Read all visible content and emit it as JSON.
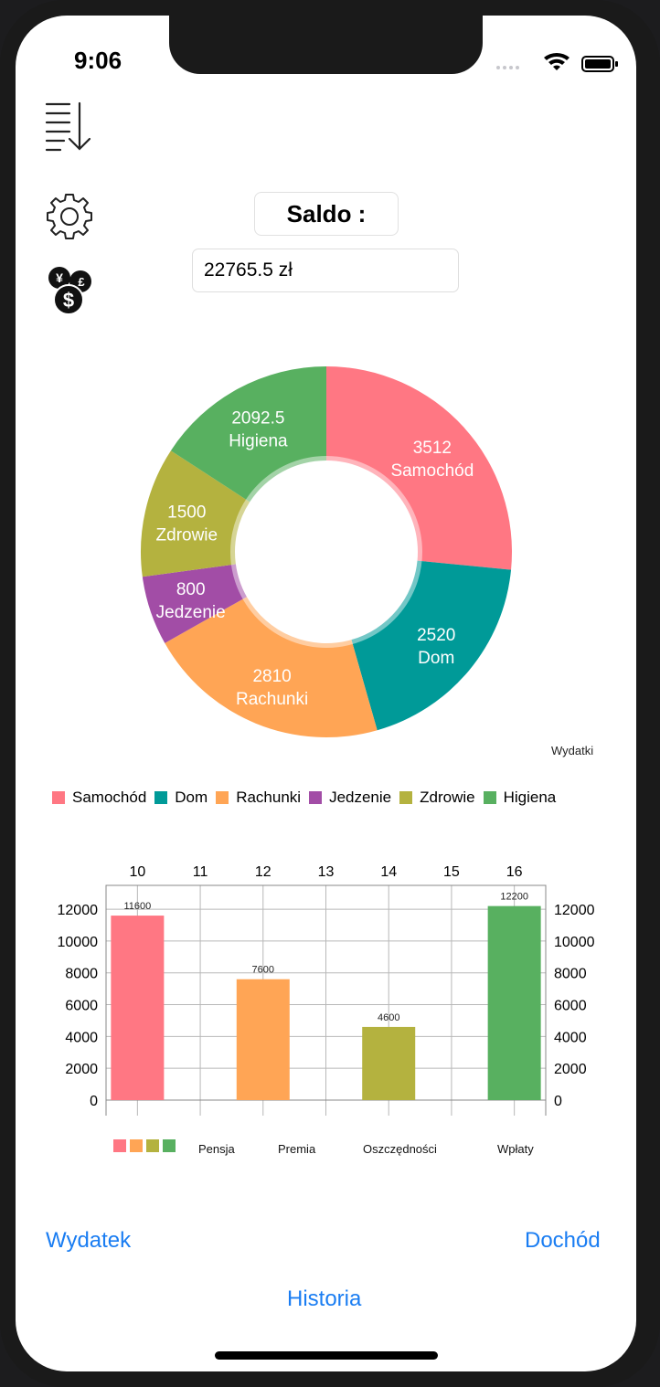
{
  "status_bar": {
    "time": "9:06"
  },
  "balance": {
    "label": "Saldo :",
    "value": "22765.5 zł"
  },
  "icons": {
    "sort": "sort-list-icon",
    "settings": "gear-icon",
    "currency": "currency-exchange-icon"
  },
  "donut": {
    "caption": "Wydatki",
    "slices": [
      {
        "value": 3512,
        "value_text": "3512",
        "label": "Samochód",
        "color": "#ff7783"
      },
      {
        "value": 2520,
        "value_text": "2520",
        "label": "Dom",
        "color": "#009a98"
      },
      {
        "value": 2810,
        "value_text": "2810",
        "label": "Rachunki",
        "color": "#ffa555"
      },
      {
        "value": 800,
        "value_text": "800",
        "label": "Jedzenie",
        "color": "#a24da6"
      },
      {
        "value": 1500,
        "value_text": "1500",
        "label": "Zdrowie",
        "color": "#b4b23f"
      },
      {
        "value": 2092.5,
        "value_text": "2092.5",
        "label": "Higiena",
        "color": "#58b060"
      }
    ]
  },
  "chart_data": {
    "type": "bar",
    "x_ticks": [
      "10",
      "11",
      "12",
      "13",
      "14",
      "15",
      "16"
    ],
    "y_ticks": [
      "12000",
      "10000",
      "8000",
      "6000",
      "4000",
      "2000",
      "0"
    ],
    "ylim": [
      0,
      13500
    ],
    "bars": [
      {
        "x": 10,
        "value": 11600,
        "value_text": "11600",
        "color": "#ff7783"
      },
      {
        "x": 12,
        "value": 7600,
        "value_text": "7600",
        "color": "#ffa555"
      },
      {
        "x": 14,
        "value": 4600,
        "value_text": "4600",
        "color": "#b4b23f"
      },
      {
        "x": 16,
        "value": 12200,
        "value_text": "12200",
        "color": "#58b060"
      }
    ],
    "categories": [
      "Pensja",
      "Premia",
      "Oszczędności",
      "Wpłaty"
    ],
    "grid": true
  },
  "buttons": {
    "expense": "Wydatek",
    "income": "Dochód",
    "history": "Historia"
  }
}
